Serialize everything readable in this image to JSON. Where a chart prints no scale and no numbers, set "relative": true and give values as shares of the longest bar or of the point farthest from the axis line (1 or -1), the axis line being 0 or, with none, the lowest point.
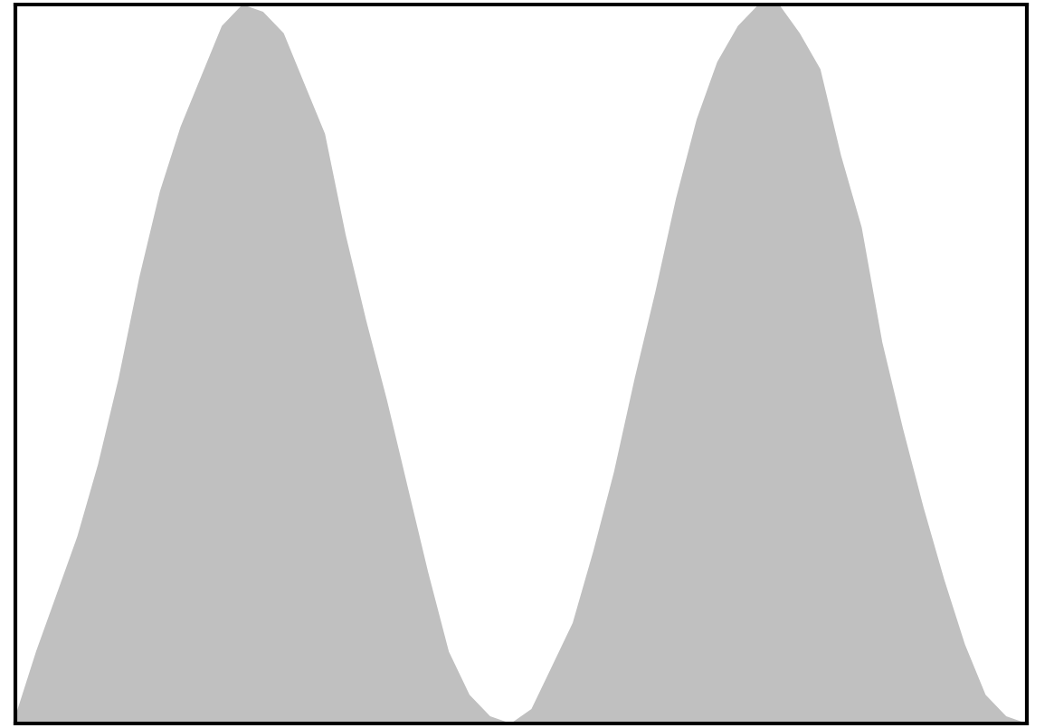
{
  "chart_data": {
    "type": "area",
    "relative": true,
    "color": "#c0c0c0",
    "categories": [
      null,
      null,
      null,
      null,
      null,
      null,
      null,
      null,
      null,
      null,
      null,
      null,
      null,
      null,
      null,
      null,
      null,
      null,
      null,
      null,
      null,
      null,
      null,
      null,
      null,
      null,
      null,
      null,
      null,
      null,
      null,
      null,
      null,
      null,
      null,
      null,
      null,
      null,
      null,
      null,
      null,
      null,
      null,
      null,
      null,
      null,
      null,
      null,
      null,
      null
    ],
    "values": [
      0.01,
      0.1,
      0.18,
      0.26,
      0.36,
      0.48,
      0.62,
      0.74,
      0.83,
      0.9,
      0.97,
      1.0,
      0.99,
      0.96,
      0.89,
      0.82,
      0.68,
      0.56,
      0.45,
      0.33,
      0.21,
      0.1,
      0.04,
      0.01,
      0.0,
      0.02,
      0.08,
      0.14,
      0.24,
      0.35,
      0.48,
      0.6,
      0.73,
      0.84,
      0.92,
      0.97,
      1.0,
      1.0,
      0.96,
      0.91,
      0.79,
      0.69,
      0.53,
      0.41,
      0.3,
      0.2,
      0.11,
      0.04,
      0.01,
      0.0
    ]
  }
}
